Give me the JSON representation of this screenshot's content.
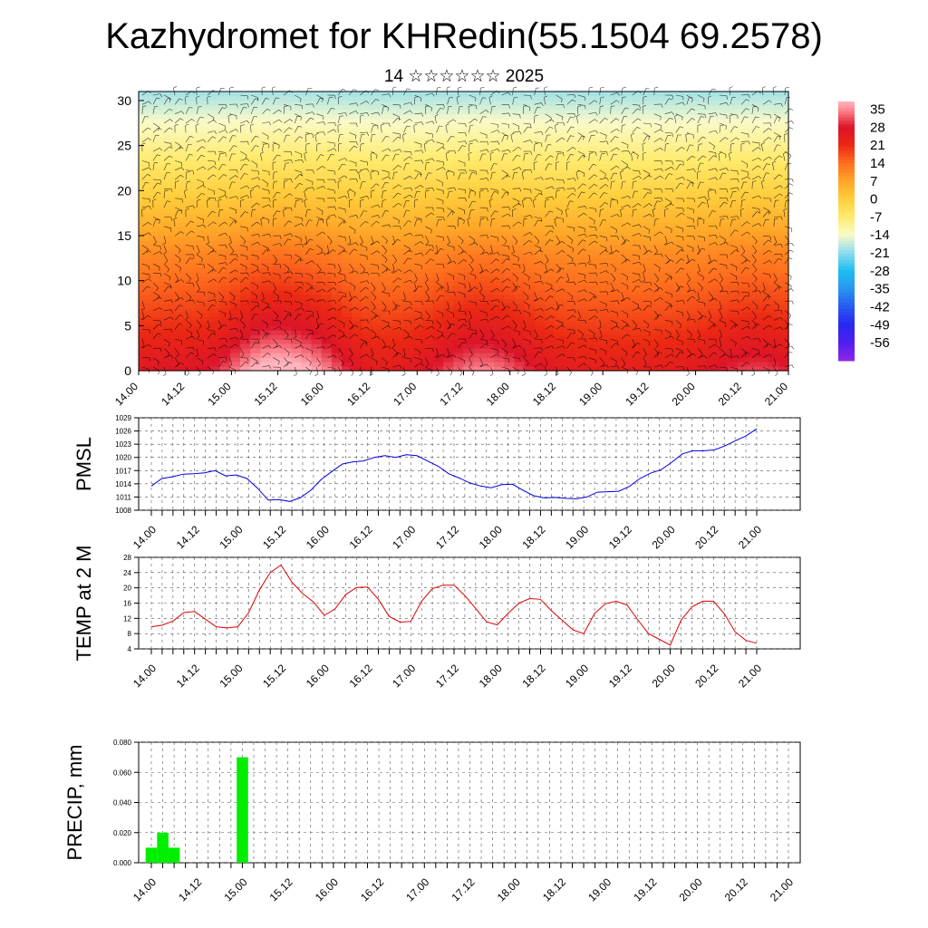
{
  "header": {
    "title": "Kazhydromet for KHRedin(55.1504 69.2578)",
    "subtitle": "14 ☆☆☆☆☆☆ 2025"
  },
  "time_labels": [
    "14.00",
    "14.12",
    "15.00",
    "15.12",
    "16.00",
    "16.12",
    "17.00",
    "17.12",
    "18.00",
    "18.12",
    "19.00",
    "19.12",
    "20.00",
    "20.12",
    "21.00"
  ],
  "chart_data": [
    {
      "type": "heatmap",
      "title": "Kazhydromet for KHRedin(55.1504 69.2578)",
      "x_categories": [
        "14.00",
        "14.12",
        "15.00",
        "15.12",
        "16.00",
        "16.12",
        "17.00",
        "17.12",
        "18.00",
        "18.12",
        "19.00",
        "19.12",
        "20.00",
        "20.12",
        "21.00"
      ],
      "y_ticks": [
        "0",
        "5",
        "10",
        "15",
        "20",
        "25",
        "30"
      ],
      "ylim": [
        0,
        31
      ],
      "colorbar_labels": [
        "35",
        "28",
        "21",
        "14",
        "7",
        "0",
        "-7",
        "-14",
        "-21",
        "-28",
        "-35",
        "-42",
        "-49",
        "-56"
      ],
      "colorbar_range": [
        -63,
        38
      ],
      "overlay": "wind barbs",
      "colors": [
        "#8a2be2",
        "#3030f0",
        "#20b8f0",
        "#fff8a0",
        "#ffd040",
        "#ff8a20",
        "#e81010",
        "#ff9aa8"
      ]
    },
    {
      "type": "line",
      "ylabel": "PMSL",
      "ylim": [
        1008,
        1029
      ],
      "y_ticks": [
        "1008",
        "1011",
        "1014",
        "1017",
        "1020",
        "1023",
        "1026",
        "1029"
      ],
      "color": "#0000e0",
      "values": [
        1013.5,
        1015.2,
        1015.6,
        1016.2,
        1016.3,
        1016.5,
        1017.0,
        1015.8,
        1016.0,
        1015.2,
        1013.0,
        1010.3,
        1010.4,
        1010.0,
        1010.8,
        1012.5,
        1015.0,
        1016.8,
        1018.5,
        1019.0,
        1019.2,
        1020.0,
        1020.4,
        1020.0,
        1020.6,
        1020.4,
        1019.2,
        1018.0,
        1016.3,
        1015.3,
        1014.2,
        1013.5,
        1013.1,
        1013.8,
        1013.9,
        1012.5,
        1011.3,
        1010.8,
        1010.9,
        1010.7,
        1010.6,
        1011.0,
        1012.1,
        1012.2,
        1012.3,
        1013.4,
        1015.2,
        1016.4,
        1017.2,
        1018.9,
        1020.8,
        1021.5,
        1021.5,
        1021.7,
        1022.6,
        1023.8,
        1024.9,
        1026.5
      ]
    },
    {
      "type": "line",
      "ylabel": "TEMP at 2 M",
      "ylim": [
        4,
        28
      ],
      "y_ticks": [
        "4",
        "8",
        "12",
        "16",
        "20",
        "24",
        "28"
      ],
      "color": "#e00000",
      "values": [
        9.8,
        10.2,
        11.3,
        13.5,
        13.8,
        11.8,
        9.8,
        9.5,
        9.8,
        13.5,
        19.5,
        24.0,
        26.0,
        21.5,
        18.5,
        16.3,
        12.8,
        14.5,
        18.3,
        20.1,
        20.2,
        17.0,
        12.5,
        11.0,
        11.2,
        16.5,
        19.8,
        20.7,
        20.7,
        18.0,
        14.6,
        11.1,
        10.3,
        13.3,
        16.0,
        17.2,
        17.0,
        14.0,
        11.5,
        9.0,
        8.0,
        13.3,
        15.8,
        16.5,
        15.5,
        11.6,
        8.0,
        6.5,
        5.0,
        11.5,
        15.0,
        16.5,
        16.5,
        13.2,
        8.5,
        6.2,
        5.5
      ]
    },
    {
      "type": "bar",
      "ylabel": "PRECIP, mm",
      "ylim": [
        0,
        0.08
      ],
      "y_ticks": [
        "0.000",
        "0.020",
        "0.040",
        "0.060",
        "0.080"
      ],
      "color": "#00ee00",
      "values": [
        0.01,
        0.02,
        0.01,
        0,
        0,
        0,
        0,
        0,
        0.07,
        0,
        0,
        0,
        0,
        0,
        0,
        0,
        0,
        0,
        0,
        0,
        0,
        0,
        0,
        0,
        0,
        0,
        0,
        0,
        0,
        0,
        0,
        0,
        0,
        0,
        0,
        0,
        0,
        0,
        0,
        0,
        0,
        0,
        0,
        0,
        0,
        0,
        0,
        0,
        0,
        0,
        0,
        0,
        0,
        0,
        0,
        0,
        0
      ]
    }
  ]
}
